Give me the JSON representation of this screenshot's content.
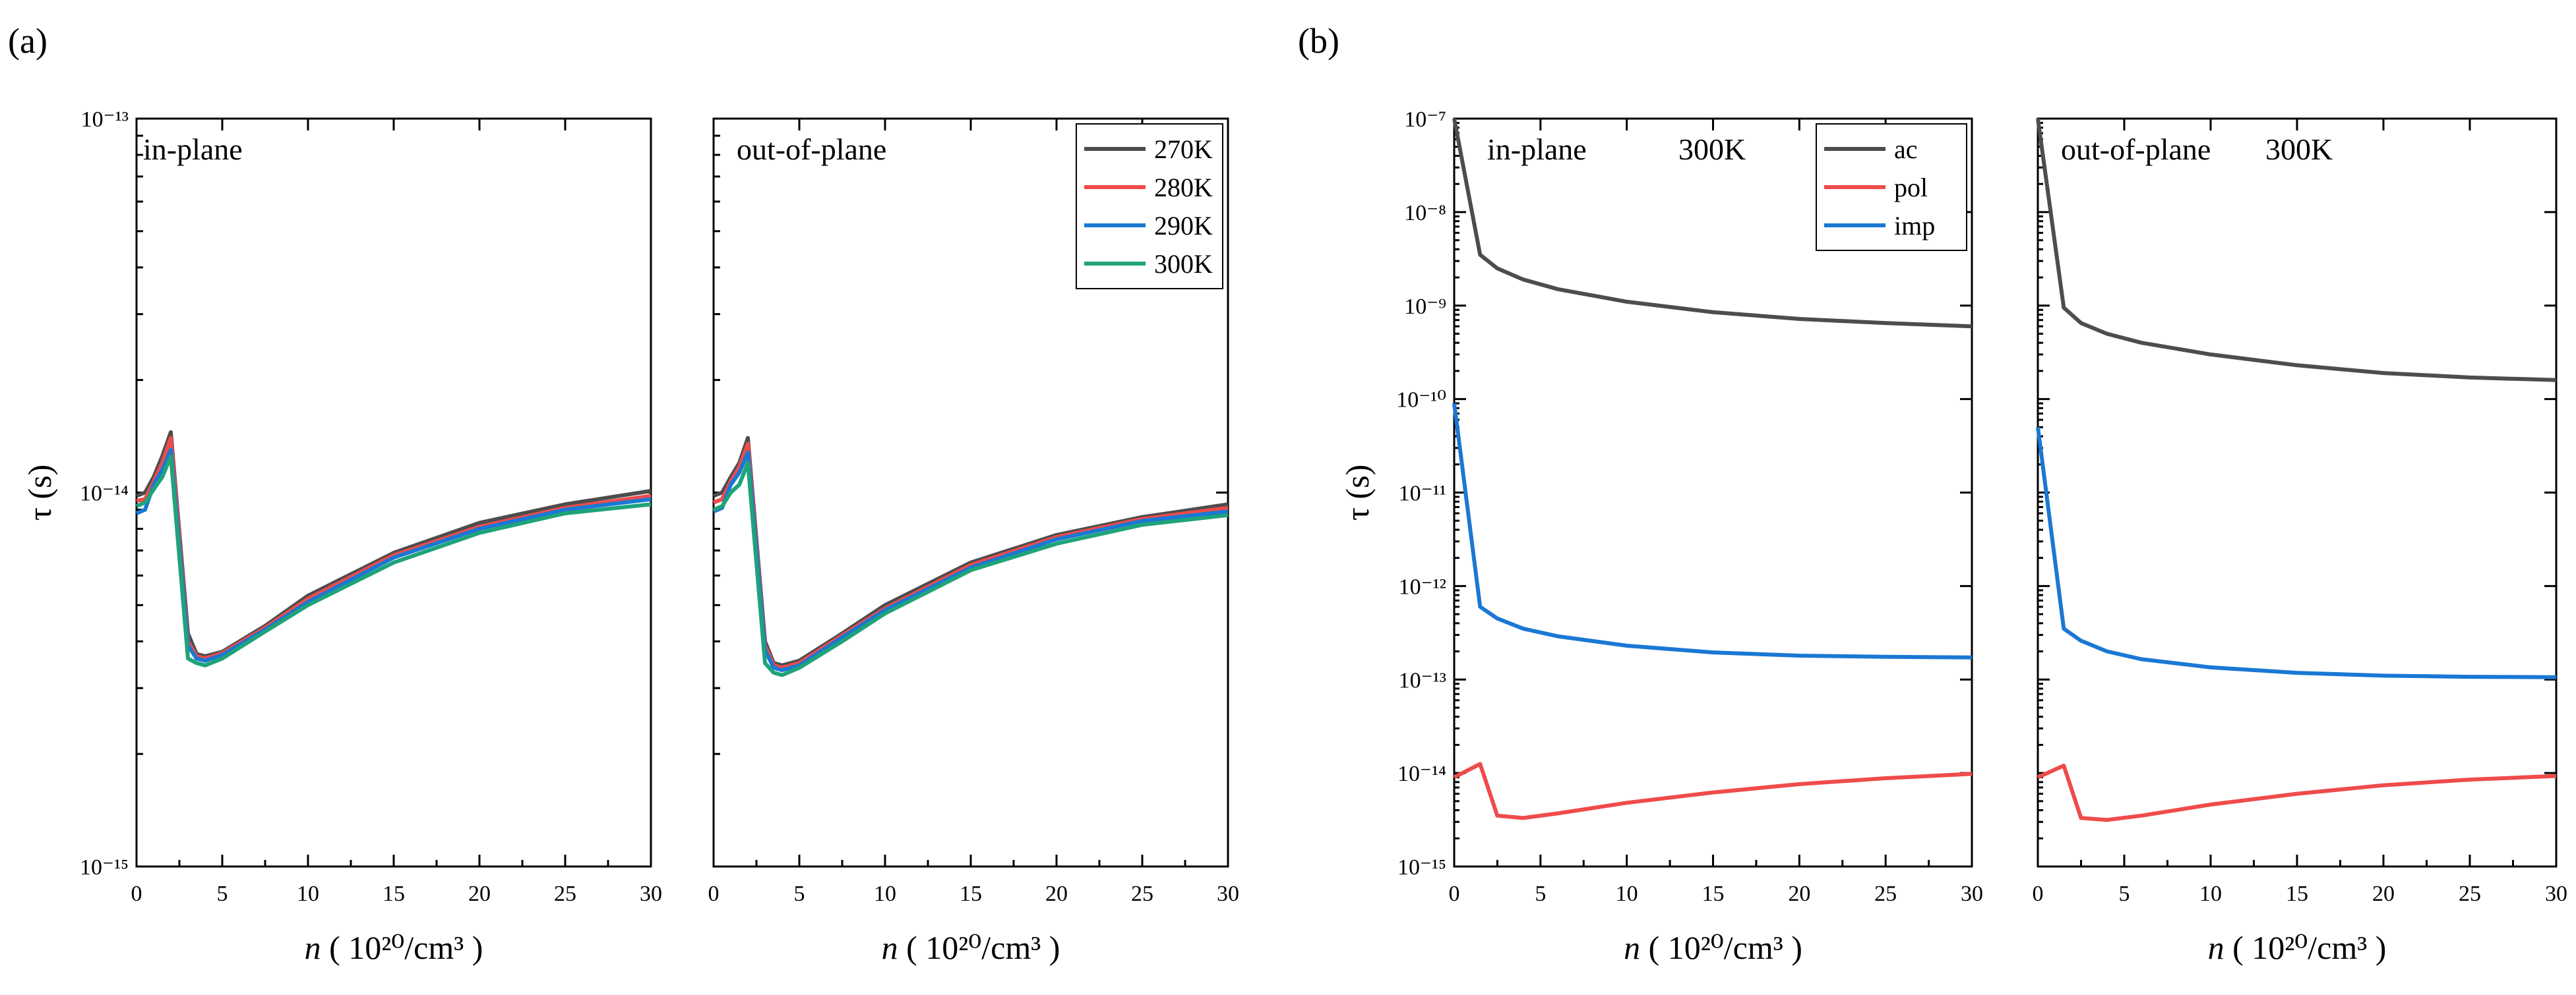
{
  "figure": {
    "panel_labels": [
      "(a)",
      "(b)"
    ],
    "ylabel": "τ (s)",
    "xlabel_prefix": "n",
    "xlabel_units": "( 10²⁰/cm³ )",
    "xticks": [
      "0",
      "5",
      "10",
      "15",
      "20",
      "25",
      "30"
    ]
  },
  "chart_data": [
    {
      "type": "line",
      "panel": "(a)",
      "subplot": "in-plane",
      "title": "",
      "annotation": "in-plane",
      "xlabel": "n ( 10²⁰/cm³ )",
      "ylabel": "τ (s)",
      "yscale": "log",
      "xlim": [
        0,
        30
      ],
      "ylim": [
        1e-15,
        1e-13
      ],
      "yticks": [
        "10⁻¹³",
        "10⁻¹⁴",
        "10⁻¹⁵"
      ],
      "x": [
        0,
        0.5,
        1,
        1.5,
        2,
        3,
        3.5,
        4,
        5,
        7.5,
        10,
        15,
        20,
        25,
        30
      ],
      "series": [
        {
          "name": "270K",
          "color": "#4d4d4d",
          "values": [
            9.8e-15,
            1e-14,
            1.1e-14,
            1.25e-14,
            1.45e-14,
            4.2e-15,
            3.7e-15,
            3.65e-15,
            3.75e-15,
            4.4e-15,
            5.3e-15,
            6.9e-15,
            8.3e-15,
            9.3e-15,
            1.01e-14
          ]
        },
        {
          "name": "280K",
          "color": "#ef4b4b",
          "values": [
            9.5e-15,
            9.6e-15,
            1.07e-14,
            1.2e-14,
            1.4e-14,
            4e-15,
            3.65e-15,
            3.6e-15,
            3.72e-15,
            4.35e-15,
            5.2e-15,
            6.8e-15,
            8.1e-15,
            9.1e-15,
            9.8e-15
          ]
        },
        {
          "name": "290K",
          "color": "#1a78d4",
          "values": [
            8.8e-15,
            9e-15,
            1.05e-14,
            1.15e-14,
            1.3e-14,
            3.9e-15,
            3.6e-15,
            3.55e-15,
            3.68e-15,
            4.3e-15,
            5.1e-15,
            6.7e-15,
            8e-15,
            9e-15,
            9.6e-15
          ]
        },
        {
          "name": "300K",
          "color": "#1fa37a",
          "values": [
            9.2e-15,
            9.4e-15,
            1.02e-14,
            1.1e-14,
            1.25e-14,
            3.6e-15,
            3.5e-15,
            3.45e-15,
            3.6e-15,
            4.25e-15,
            5e-15,
            6.5e-15,
            7.8e-15,
            8.8e-15,
            9.3e-15
          ]
        }
      ]
    },
    {
      "type": "line",
      "panel": "(a)",
      "subplot": "out-of-plane",
      "title": "",
      "annotation": "out-of-plane",
      "xlabel": "n ( 10²⁰/cm³ )",
      "ylabel": "",
      "yscale": "log",
      "xlim": [
        0,
        30
      ],
      "ylim": [
        1e-15,
        1e-13
      ],
      "legend": {
        "position": "top-right",
        "entries": [
          "270K",
          "280K",
          "290K",
          "300K"
        ]
      },
      "x": [
        0,
        0.5,
        1,
        1.5,
        2,
        3,
        3.5,
        4,
        5,
        7.5,
        10,
        15,
        20,
        25,
        30
      ],
      "series": [
        {
          "name": "270K",
          "color": "#4d4d4d",
          "values": [
            9.8e-15,
            1e-14,
            1.1e-14,
            1.2e-14,
            1.4e-14,
            4e-15,
            3.5e-15,
            3.45e-15,
            3.55e-15,
            4.2e-15,
            5e-15,
            6.5e-15,
            7.7e-15,
            8.6e-15,
            9.3e-15
          ]
        },
        {
          "name": "280K",
          "color": "#ef4b4b",
          "values": [
            9.4e-15,
            9.6e-15,
            1.07e-14,
            1.17e-14,
            1.35e-14,
            3.9e-15,
            3.45e-15,
            3.4e-15,
            3.5e-15,
            4.15e-15,
            4.9e-15,
            6.4e-15,
            7.6e-15,
            8.5e-15,
            9.1e-15
          ]
        },
        {
          "name": "290K",
          "color": "#1a78d4",
          "values": [
            8.9e-15,
            9.1e-15,
            1.05e-14,
            1.13e-14,
            1.28e-14,
            3.8e-15,
            3.4e-15,
            3.35e-15,
            3.45e-15,
            4.1e-15,
            4.85e-15,
            6.3e-15,
            7.5e-15,
            8.4e-15,
            8.9e-15
          ]
        },
        {
          "name": "300K",
          "color": "#1fa37a",
          "values": [
            9e-15,
            9.2e-15,
            1e-14,
            1.05e-14,
            1.2e-14,
            3.5e-15,
            3.3e-15,
            3.25e-15,
            3.4e-15,
            4e-15,
            4.75e-15,
            6.2e-15,
            7.3e-15,
            8.2e-15,
            8.7e-15
          ]
        }
      ]
    },
    {
      "type": "line",
      "panel": "(b)",
      "subplot": "in-plane",
      "title": "",
      "annotation": "in-plane",
      "temperature": "300K",
      "xlabel": "n ( 10²⁰/cm³ )",
      "ylabel": "τ (s)",
      "yscale": "log",
      "xlim": [
        0,
        30
      ],
      "ylim": [
        1e-15,
        1e-07
      ],
      "yticks": [
        "10⁻⁷",
        "10⁻⁸",
        "10⁻⁹",
        "10⁻¹⁰",
        "10⁻¹¹",
        "10⁻¹²",
        "10⁻¹³",
        "10⁻¹⁴",
        "10⁻¹⁵"
      ],
      "legend": {
        "position": "top-right",
        "entries": [
          "ac",
          "pol",
          "imp"
        ]
      },
      "x": [
        0,
        1.5,
        2.5,
        4,
        6,
        10,
        15,
        20,
        25,
        30
      ],
      "series": [
        {
          "name": "ac",
          "color": "#4d4d4d",
          "values": [
            1e-07,
            3.5e-09,
            2.5e-09,
            1.9e-09,
            1.5e-09,
            1.1e-09,
            8.5e-10,
            7.2e-10,
            6.5e-10,
            6e-10
          ]
        },
        {
          "name": "pol",
          "color": "#ef4b4b",
          "values": [
            9e-15,
            1.25e-14,
            3.5e-15,
            3.3e-15,
            3.7e-15,
            4.8e-15,
            6.2e-15,
            7.6e-15,
            8.8e-15,
            9.8e-15
          ]
        },
        {
          "name": "imp",
          "color": "#1a78d4",
          "values": [
            9e-11,
            6e-13,
            4.5e-13,
            3.5e-13,
            2.9e-13,
            2.3e-13,
            1.95e-13,
            1.8e-13,
            1.75e-13,
            1.72e-13
          ]
        }
      ]
    },
    {
      "type": "line",
      "panel": "(b)",
      "subplot": "out-of-plane",
      "title": "",
      "annotation": "out-of-plane",
      "temperature": "300K",
      "xlabel": "n ( 10²⁰/cm³ )",
      "ylabel": "",
      "yscale": "log",
      "xlim": [
        0,
        30
      ],
      "ylim": [
        1e-15,
        1e-07
      ],
      "x": [
        0,
        1.5,
        2.5,
        4,
        6,
        10,
        15,
        20,
        25,
        30
      ],
      "series": [
        {
          "name": "ac",
          "color": "#4d4d4d",
          "values": [
            1e-07,
            9.5e-10,
            6.5e-10,
            5e-10,
            4e-10,
            3e-10,
            2.3e-10,
            1.9e-10,
            1.7e-10,
            1.6e-10
          ]
        },
        {
          "name": "pol",
          "color": "#ef4b4b",
          "values": [
            9e-15,
            1.2e-14,
            3.3e-15,
            3.15e-15,
            3.5e-15,
            4.6e-15,
            6e-15,
            7.4e-15,
            8.5e-15,
            9.3e-15
          ]
        },
        {
          "name": "imp",
          "color": "#1a78d4",
          "values": [
            5e-11,
            3.5e-13,
            2.6e-13,
            2e-13,
            1.65e-13,
            1.35e-13,
            1.18e-13,
            1.1e-13,
            1.07e-13,
            1.06e-13
          ]
        }
      ]
    }
  ]
}
